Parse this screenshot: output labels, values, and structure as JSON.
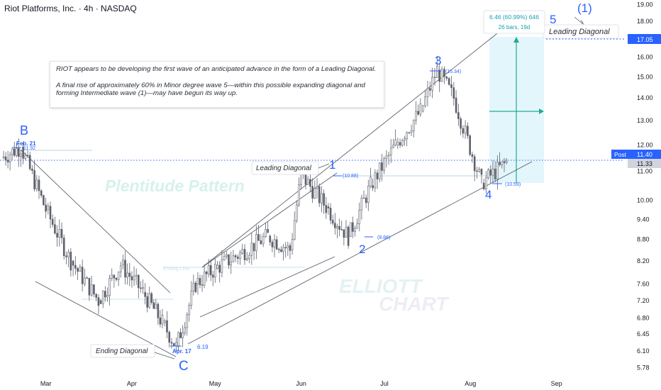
{
  "header": {
    "title": "Riot Platforms, Inc. · 4h · NASDAQ"
  },
  "note": {
    "para1": "RIOT appears to be developing the first wave of an anticipated advance in the form of a Leading Diagonal.",
    "para2": "A final rise of approximately 60% in Minor degree wave 5—within this possible expanding diagonal and forming Intermediate wave (1)—may have begun its way up."
  },
  "colors": {
    "accent": "#2962ff",
    "teal": "#089981",
    "cyan_zone": "#e3f6fb",
    "price_line": "#2962ff",
    "candle": "#5d606b"
  },
  "chart_data": {
    "type": "candlestick",
    "title": "Riot Platforms, Inc. · 4h · NASDAQ",
    "yscale": "log",
    "ylim": [
      5.6,
      19.3
    ],
    "y_ticks": [
      19.0,
      18.0,
      17.05,
      16.0,
      15.0,
      14.0,
      13.0,
      12.0,
      11.4,
      11.33,
      11.0,
      10.0,
      9.4,
      8.8,
      8.2,
      7.6,
      7.2,
      6.8,
      6.45,
      6.1,
      5.78
    ],
    "y_tick_labels": [
      "19.00",
      "18.00",
      "17.05",
      "16.00",
      "15.00",
      "14.00",
      "13.00",
      "12.00",
      "11.40",
      "11.33",
      "11.00",
      "10.00",
      "9.40",
      "8.80",
      "8.20",
      "7.60",
      "7.20",
      "6.80",
      "6.45",
      "6.10",
      "5.78"
    ],
    "x_ticks": [
      "Mar",
      "Apr",
      "May",
      "Jun",
      "Jul",
      "Aug",
      "Sep"
    ],
    "last_price": 11.33,
    "post_price": 11.4,
    "post_label": "Post",
    "target_price": 17.05,
    "wave_labels": [
      {
        "text": "B",
        "date": "2024-02-21",
        "price": 11.92,
        "date_label": "Feb. 21",
        "price_label": "11.92"
      },
      {
        "text": "C",
        "date": "2024-04-17",
        "price": 6.19,
        "date_label": "Apr. 17",
        "price_label": "6.19"
      },
      {
        "text": "1",
        "price": 10.88,
        "price_label": "(10.88)"
      },
      {
        "text": "2",
        "price": 8.88,
        "price_label": "(8.88)"
      },
      {
        "text": "3",
        "price": 15.34,
        "price_label": "(15.34)"
      },
      {
        "text": "4",
        "price": 10.59,
        "price_label": "(10.59)"
      },
      {
        "text": "5",
        "degree": "(1)"
      }
    ],
    "annotations": [
      {
        "text": "Leading Diagonal",
        "near": "wave 1"
      },
      {
        "text": "Leading Diagonal",
        "near": "wave 5 (1)"
      },
      {
        "text": "Ending Diagonal",
        "near": "wave C"
      },
      {
        "text": "Plentitude Pattern",
        "style": "watermark"
      },
      {
        "text": "Ending Line",
        "style": "faint"
      }
    ],
    "projection": {
      "from": 10.59,
      "to": 17.05,
      "change": "6.46 (60.99%) 646",
      "duration": "26 bars, 19d"
    },
    "watermark": [
      "ELLIOTT",
      "CHART"
    ],
    "series": [
      {
        "date": "2024-02-14",
        "close": 11.5
      },
      {
        "date": "2024-02-21",
        "close": 11.92
      },
      {
        "date": "2024-03-01",
        "close": 9.7
      },
      {
        "date": "2024-03-10",
        "close": 8.2
      },
      {
        "date": "2024-03-20",
        "close": 7.2
      },
      {
        "date": "2024-03-28",
        "close": 8.1
      },
      {
        "date": "2024-04-05",
        "close": 7.4
      },
      {
        "date": "2024-04-12",
        "close": 6.7
      },
      {
        "date": "2024-04-17",
        "close": 6.19
      },
      {
        "date": "2024-04-24",
        "close": 7.6
      },
      {
        "date": "2024-05-01",
        "close": 8.0
      },
      {
        "date": "2024-05-10",
        "close": 8.4
      },
      {
        "date": "2024-05-20",
        "close": 8.9
      },
      {
        "date": "2024-05-28",
        "close": 8.5
      },
      {
        "date": "2024-06-01",
        "close": 10.88
      },
      {
        "date": "2024-06-10",
        "close": 9.8
      },
      {
        "date": "2024-06-18",
        "close": 8.88
      },
      {
        "date": "2024-06-26",
        "close": 10.5
      },
      {
        "date": "2024-07-05",
        "close": 12.0
      },
      {
        "date": "2024-07-14",
        "close": 13.4
      },
      {
        "date": "2024-07-20",
        "close": 15.34
      },
      {
        "date": "2024-07-26",
        "close": 14.0
      },
      {
        "date": "2024-08-05",
        "close": 10.59
      },
      {
        "date": "2024-08-14",
        "close": 11.33
      }
    ]
  }
}
